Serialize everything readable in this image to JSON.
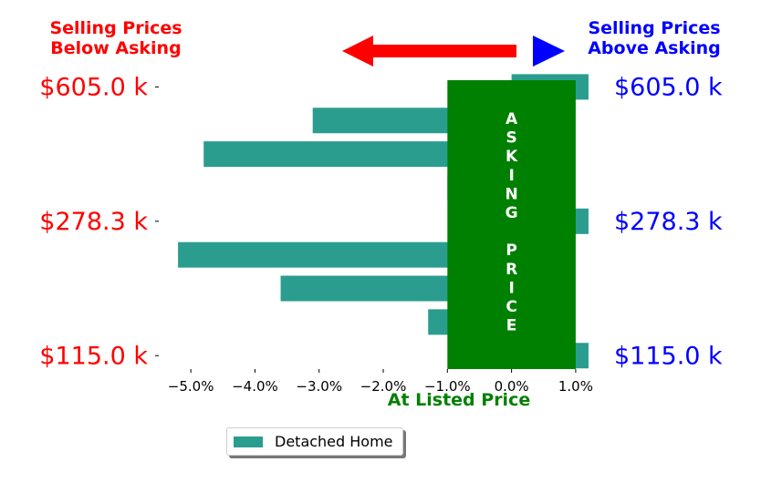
{
  "colors": {
    "below": "#ff0000",
    "above": "#0000ff",
    "bar": "#2a9d8f",
    "asking_band": "#008000",
    "axis_title": "#008000"
  },
  "header": {
    "left": "Selling Prices\nBelow Asking",
    "right": "Selling Prices\nAbove Asking"
  },
  "band_text": "ASKING PRICE",
  "legend": {
    "label": "Detached Home"
  },
  "chart_data": {
    "type": "bar",
    "orientation": "horizontal",
    "xlabel": "At Listed Price",
    "xlim": [
      -5.5,
      1.3
    ],
    "xticks": [
      "−5.0%",
      "−4.0%",
      "−3.0%",
      "−2.0%",
      "−1.0%",
      "0.0%",
      "1.0%"
    ],
    "xtick_values": [
      -5,
      -4,
      -3,
      -2,
      -1,
      0,
      1
    ],
    "ylim": [
      0,
      8.6
    ],
    "yticks_left": [
      "$605.0 k",
      "$278.3 k",
      "$115.0 k"
    ],
    "yticks_right": [
      "$605.0 k",
      "$278.3 k",
      "$115.0 k"
    ],
    "ytick_positions": [
      8,
      4,
      0
    ],
    "asking_band": [
      -1.0,
      1.0
    ],
    "series": [
      {
        "name": "Detached Home",
        "y": [
          8,
          7,
          6,
          5,
          4,
          3,
          2,
          1,
          0
        ],
        "values": [
          1.2,
          -3.1,
          -4.8,
          -1.0,
          1.2,
          -5.2,
          -3.6,
          -1.3,
          1.2
        ]
      }
    ]
  }
}
